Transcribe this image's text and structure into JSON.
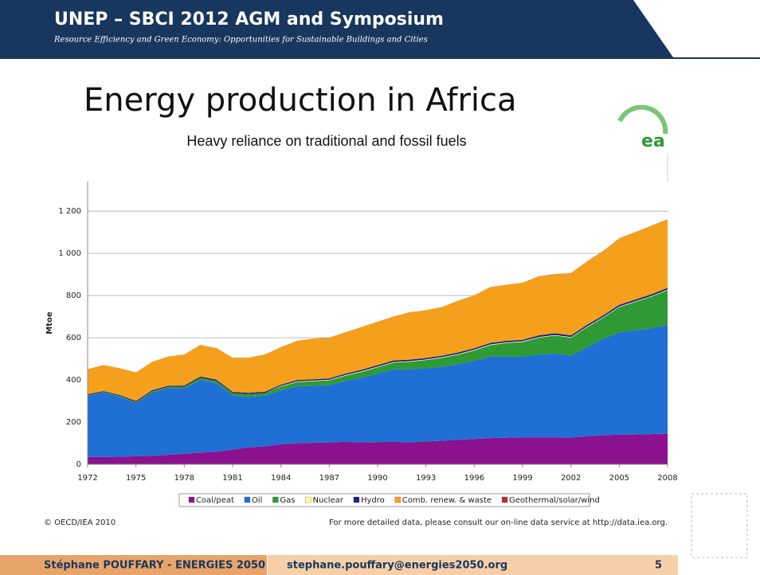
{
  "header": {
    "title": "UNEP – SBCI 2012 AGM and Symposium",
    "subtitle": "Resource Efficiency and Green Economy: Opportunities for Sustainable Buildings and Cities"
  },
  "slide_title": "Energy production in Africa",
  "slide_subtitle": "Heavy reliance on traditional and fossil fuels",
  "logo_text": "ea",
  "chart_data": {
    "type": "stacked-area",
    "ylabel": "Mtoe",
    "x": [
      1972,
      1973,
      1974,
      1975,
      1976,
      1977,
      1978,
      1979,
      1980,
      1981,
      1982,
      1983,
      1984,
      1985,
      1986,
      1987,
      1988,
      1989,
      1990,
      1991,
      1992,
      1993,
      1994,
      1995,
      1996,
      1997,
      1998,
      1999,
      2000,
      2001,
      2002,
      2003,
      2004,
      2005,
      2006,
      2007,
      2008
    ],
    "xlim": [
      1972,
      2008
    ],
    "xticks": [
      1972,
      1975,
      1978,
      1981,
      1984,
      1987,
      1990,
      1993,
      1996,
      1999,
      2002,
      2005,
      2008
    ],
    "ylim": [
      0,
      1340
    ],
    "yticks": [
      0,
      200,
      400,
      600,
      800,
      {
        "value": 1000,
        "label": "1 000"
      },
      {
        "value": 1200,
        "label": "1 200"
      }
    ],
    "grid": true,
    "series": [
      {
        "name": "Coal/peat",
        "color": "#8b118f",
        "values": [
          35,
          35,
          36,
          38,
          40,
          45,
          50,
          55,
          60,
          70,
          80,
          85,
          95,
          100,
          102,
          104,
          106,
          104,
          105,
          106,
          104,
          108,
          112,
          116,
          120,
          124,
          126,
          128,
          128,
          128,
          127,
          133,
          138,
          140,
          141,
          143,
          145
        ]
      },
      {
        "name": "Oil",
        "color": "#1f6fd4",
        "values": [
          290,
          305,
          284,
          252,
          300,
          315,
          310,
          345,
          325,
          255,
          240,
          240,
          255,
          270,
          270,
          271,
          289,
          306,
          325,
          344,
          346,
          347,
          350,
          359,
          370,
          386,
          384,
          382,
          392,
          397,
          388,
          422,
          457,
          485,
          494,
          502,
          515
        ]
      },
      {
        "name": "Gas",
        "color": "#2f9a35",
        "values": [
          3,
          3,
          4,
          5,
          6,
          7,
          8,
          10,
          10,
          12,
          13,
          13,
          18,
          20,
          22,
          23,
          25,
          28,
          30,
          32,
          36,
          39,
          43,
          45,
          50,
          55,
          65,
          70,
          80,
          85,
          85,
          95,
          100,
          120,
          135,
          150,
          165
        ]
      },
      {
        "name": "Nuclear",
        "color": "#ffff99",
        "values": [
          0,
          0,
          0,
          0,
          0,
          0,
          0,
          0,
          0,
          0,
          0,
          0,
          3,
          3,
          3,
          3,
          3,
          3,
          3,
          3,
          3,
          3,
          3,
          3,
          3,
          3,
          3,
          3,
          3,
          3,
          3,
          3,
          3,
          3,
          3,
          3,
          3
        ]
      },
      {
        "name": "Hydro",
        "color": "#1c1c8c",
        "values": [
          4,
          4,
          4,
          5,
          5,
          5,
          5,
          6,
          6,
          6,
          6,
          6,
          6,
          6,
          6,
          6,
          7,
          7,
          7,
          7,
          7,
          7,
          7,
          7,
          7,
          7,
          7,
          7,
          8,
          8,
          8,
          8,
          8,
          8,
          8,
          8,
          8
        ]
      },
      {
        "name": "Comb. renew. & waste",
        "color": "#f5a01c",
        "values": [
          118,
          123,
          127,
          135,
          134,
          138,
          147,
          149,
          149,
          162,
          166,
          176,
          178,
          186,
          192,
          193,
          195,
          202,
          205,
          208,
          224,
          226,
          230,
          245,
          250,
          265,
          265,
          270,
          279,
          279,
          294,
          299,
          304,
          314,
          319,
          324,
          324
        ]
      },
      {
        "name": "Geothermal/solar/wind",
        "color": "#c0282e",
        "values": [
          0.5,
          0.5,
          0.5,
          0.5,
          0.5,
          0.5,
          0.5,
          0.5,
          0.5,
          0.5,
          0.5,
          0.5,
          0.5,
          0.5,
          0.5,
          0.5,
          0.5,
          0.5,
          0.5,
          0.5,
          0.5,
          0.5,
          0.5,
          0.5,
          0.5,
          0.5,
          0.5,
          0.5,
          1,
          1,
          1,
          1,
          1,
          1,
          1,
          1,
          1
        ]
      }
    ]
  },
  "source": "© OECD/IEA 2010",
  "note": "For more detailed data, please consult our on-line data service at http://data.iea.org.",
  "footer": {
    "author": "Stéphane POUFFARY - ENERGIES 2050",
    "email": "stephane.pouffary@energies2050.org",
    "page": "5"
  }
}
